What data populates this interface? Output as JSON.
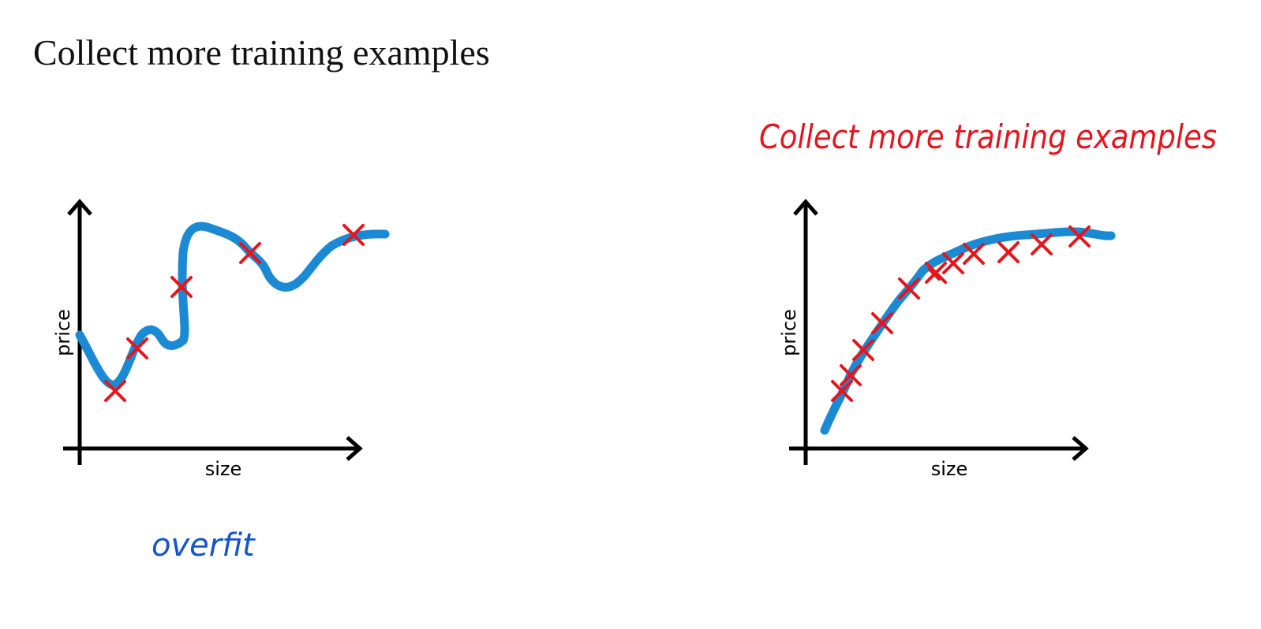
{
  "slide": {
    "title": "Collect more training examples"
  },
  "annotations": {
    "left_note": "overfit",
    "right_note": "Collect more training examples"
  },
  "colors": {
    "curve": "#1a8ad4",
    "points": "#e8141c",
    "axes": "#000000",
    "note_red": "#e8141c",
    "note_blue": "#1155d0"
  },
  "plots": [
    {
      "id": "left",
      "xlabel": "size",
      "ylabel": "price",
      "fit": "overfit",
      "point_count": 5
    },
    {
      "id": "right",
      "xlabel": "size",
      "ylabel": "price",
      "fit": "smooth",
      "point_count": 12
    }
  ]
}
